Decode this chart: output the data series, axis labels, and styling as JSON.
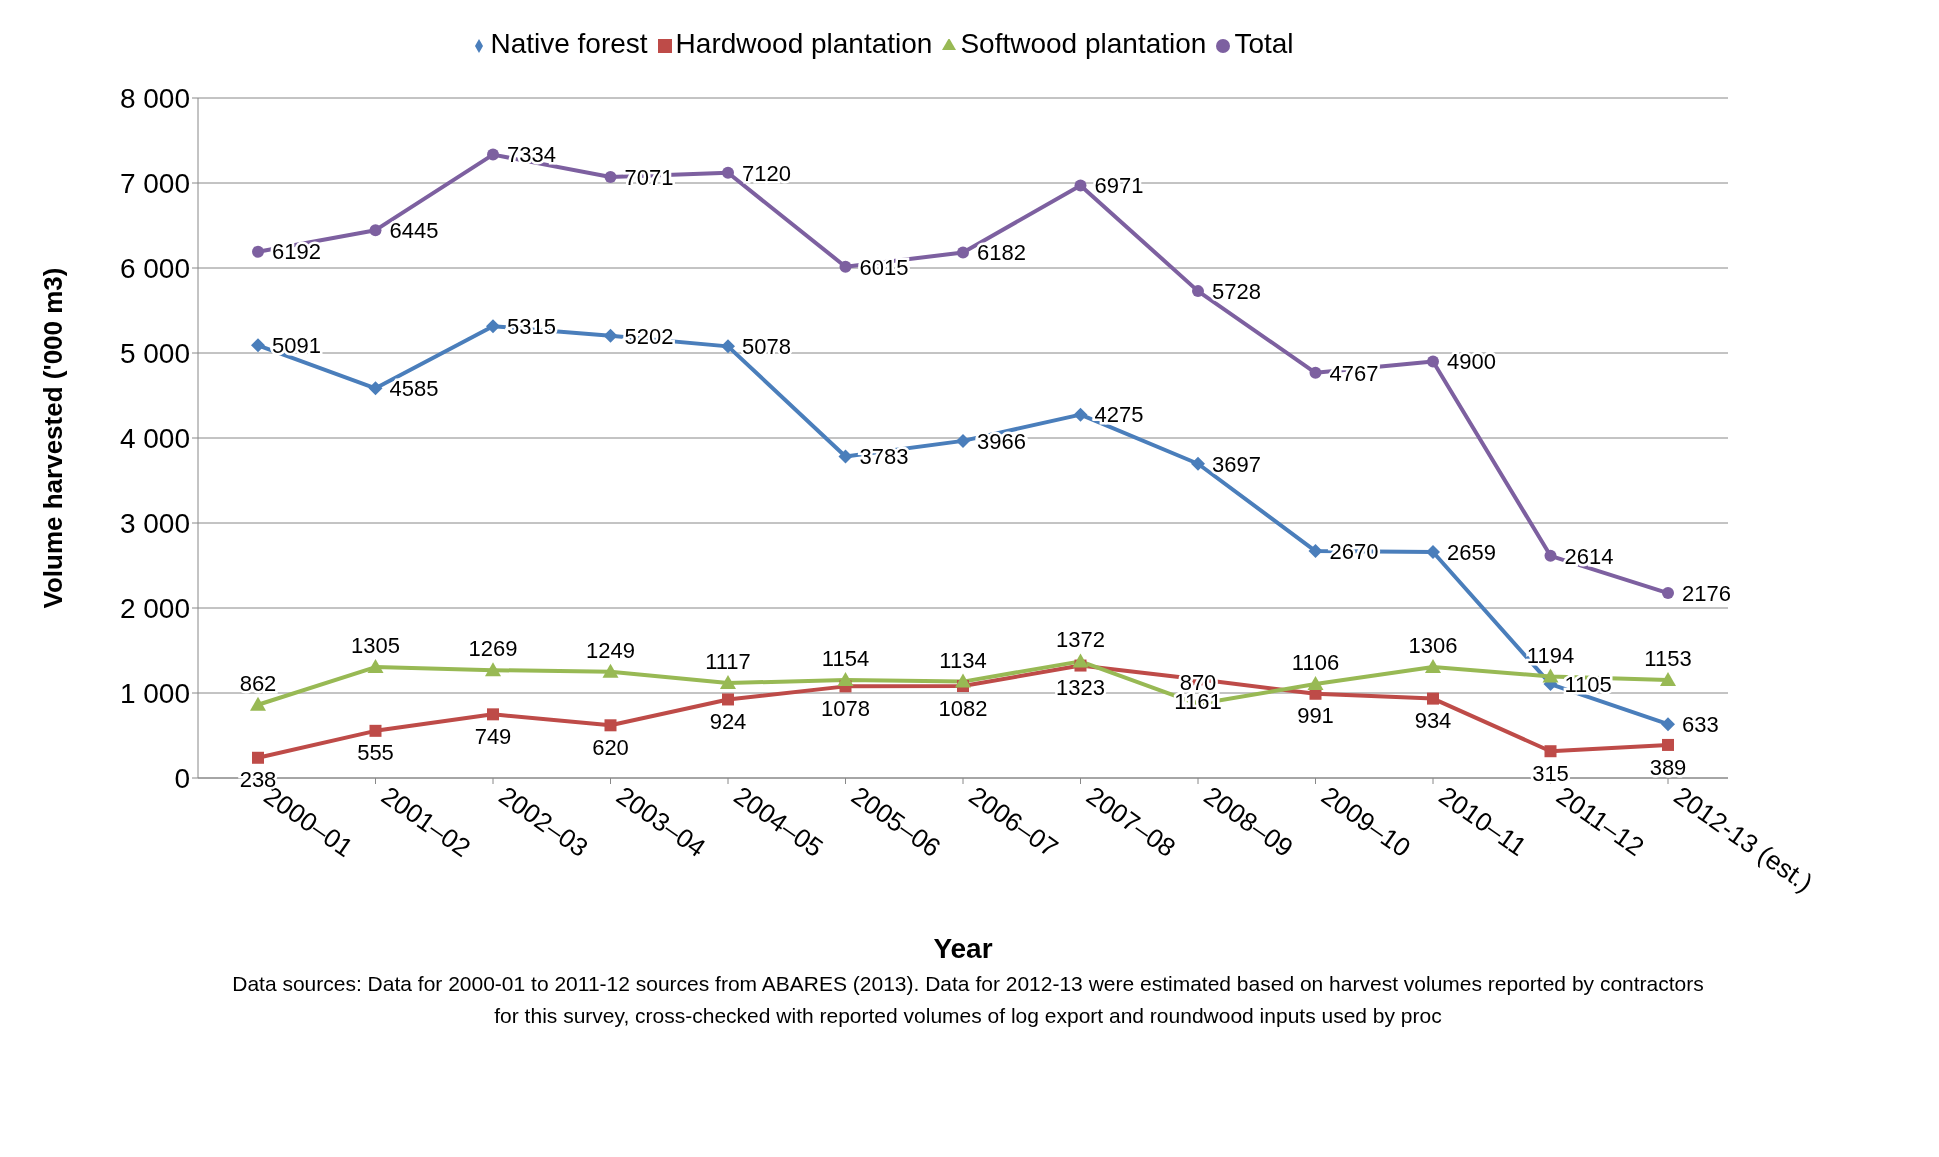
{
  "chart_data": {
    "type": "line",
    "xlabel": "Year",
    "ylabel": "Volume harvested ('000 m3)",
    "categories": [
      "2000–01",
      "2001–02",
      "2002–03",
      "2003–04",
      "2004–05",
      "2005–06",
      "2006–07",
      "2007–08",
      "2008–09",
      "2009–10",
      "2010–11",
      "2011–12",
      "2012-13 (est.)"
    ],
    "series": [
      {
        "name": "Native forest",
        "color": "#4a7ebb",
        "marker": "diamond",
        "values": [
          5091,
          4585,
          5315,
          5202,
          5078,
          3783,
          3966,
          4275,
          3697,
          2670,
          2659,
          1105,
          633
        ]
      },
      {
        "name": "Hardwood plantation",
        "color": "#be4b48",
        "marker": "square",
        "values": [
          238,
          555,
          749,
          620,
          924,
          1078,
          1082,
          1323,
          1161,
          991,
          934,
          315,
          389
        ]
      },
      {
        "name": "Softwood plantation",
        "color": "#98b954",
        "marker": "triangle",
        "values": [
          862,
          1305,
          1269,
          1249,
          1117,
          1154,
          1134,
          1372,
          870,
          1106,
          1306,
          1194,
          1153
        ]
      },
      {
        "name": "Total",
        "color": "#7d60a0",
        "marker": "circle",
        "values": [
          6192,
          6445,
          7334,
          7071,
          7120,
          6015,
          6182,
          6971,
          5728,
          4767,
          4900,
          2614,
          2176
        ]
      }
    ],
    "ylim": [
      0,
      8000
    ],
    "yticks": [
      {
        "value": 0,
        "label": "0"
      },
      {
        "value": 1000,
        "label": "1 000"
      },
      {
        "value": 2000,
        "label": "2 000"
      },
      {
        "value": 3000,
        "label": "3 000"
      },
      {
        "value": 4000,
        "label": "4 000"
      },
      {
        "value": 5000,
        "label": "5 000"
      },
      {
        "value": 6000,
        "label": "6 000"
      },
      {
        "value": 7000,
        "label": "7 000"
      },
      {
        "value": 8000,
        "label": "8 000"
      }
    ],
    "grid": "y",
    "legend": "top",
    "data_labels": true,
    "line_style": "solid",
    "annotations": [
      "Data sources: Data for 2000-01 to 2011-12 sources from ABARES (2013). Data for 2012-13 were estimated based on harvest volumes reported by contractors for this survey, cross-checked with reported volumes of log export and roundwood inputs used by proc"
    ]
  }
}
